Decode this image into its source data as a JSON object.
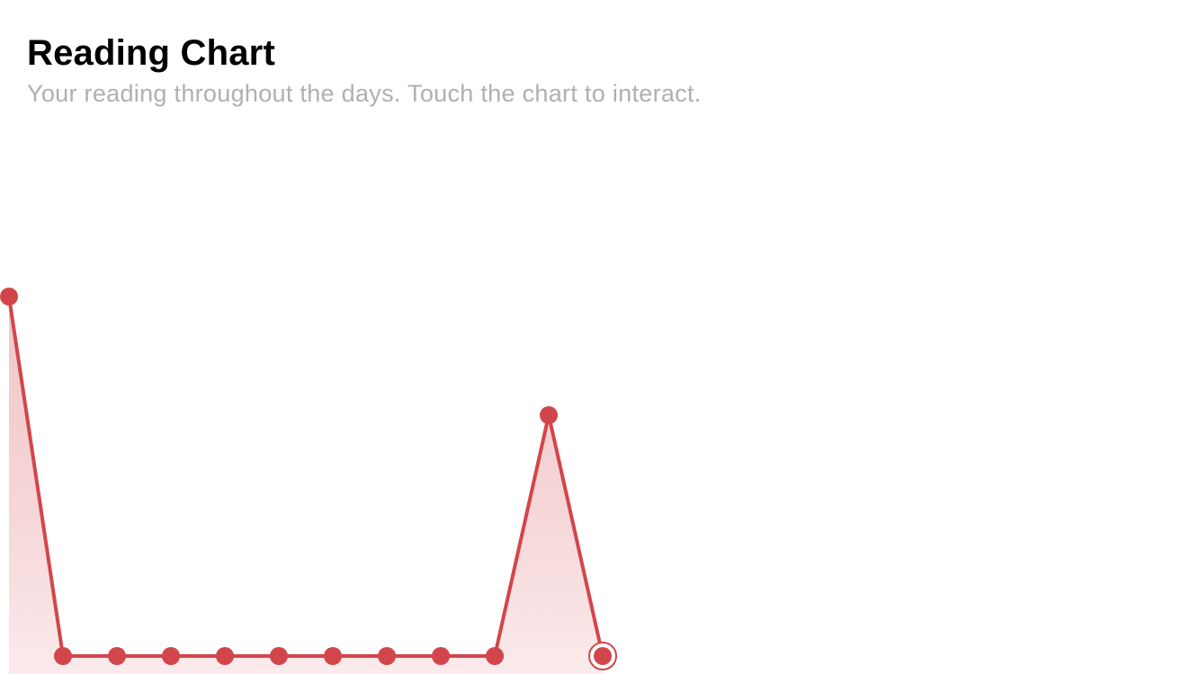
{
  "header": {
    "title": "Reading Chart",
    "subtitle": "Your reading throughout the days. Touch the chart to interact."
  },
  "colors": {
    "accent": "#d2464b",
    "fill_top": "#e9a3a6",
    "fill_bottom": "#fbe9ea",
    "subtitle": "#b0b0b0"
  },
  "chart_data": {
    "type": "area",
    "x": [
      1,
      2,
      3,
      4,
      5,
      6,
      7,
      8,
      9,
      10,
      11,
      12
    ],
    "series": [
      {
        "values": [
          100,
          0,
          0,
          0,
          0,
          0,
          0,
          0,
          0,
          0,
          67,
          0
        ]
      }
    ],
    "selected_index": 11,
    "ylim": [
      0,
      100
    ],
    "grid": false,
    "axes_visible": false,
    "legend": "none"
  }
}
